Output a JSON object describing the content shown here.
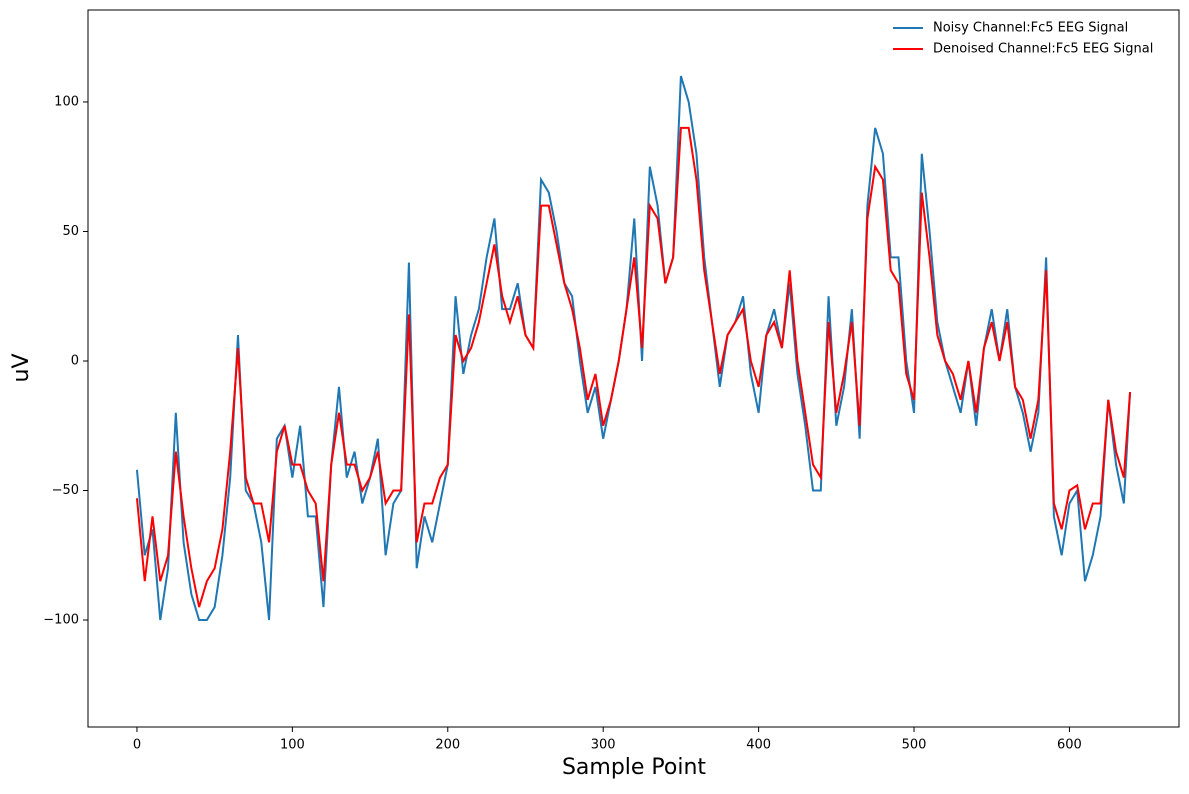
{
  "chart_data": {
    "type": "line",
    "x_label": "Sample Point",
    "y_label": "uV",
    "x": [
      0,
      5,
      10,
      15,
      20,
      25,
      30,
      35,
      40,
      45,
      50,
      55,
      60,
      65,
      70,
      75,
      80,
      85,
      90,
      95,
      100,
      105,
      110,
      115,
      120,
      125,
      130,
      135,
      140,
      145,
      150,
      155,
      160,
      165,
      170,
      175,
      180,
      185,
      190,
      195,
      200,
      205,
      210,
      215,
      220,
      225,
      230,
      235,
      240,
      245,
      250,
      255,
      260,
      265,
      270,
      275,
      280,
      285,
      290,
      295,
      300,
      305,
      310,
      315,
      320,
      325,
      330,
      335,
      340,
      345,
      350,
      355,
      360,
      365,
      370,
      375,
      380,
      385,
      390,
      395,
      400,
      405,
      410,
      415,
      420,
      425,
      430,
      435,
      440,
      445,
      450,
      455,
      460,
      465,
      470,
      475,
      480,
      485,
      490,
      495,
      500,
      505,
      510,
      515,
      520,
      525,
      530,
      535,
      540,
      545,
      550,
      555,
      560,
      565,
      570,
      575,
      580,
      585,
      590,
      595,
      600,
      605,
      610,
      615,
      620,
      625,
      630,
      635,
      639
    ],
    "series": [
      {
        "name": "Noisy Channel:Fc5 EEG Signal",
        "color": "#1f77b4",
        "values": [
          -42,
          -75,
          -65,
          -100,
          -80,
          -20,
          -70,
          -90,
          -100,
          -100,
          -95,
          -75,
          -45,
          10,
          -50,
          -55,
          -70,
          -100,
          -30,
          -25,
          -45,
          -25,
          -60,
          -60,
          -95,
          -40,
          -10,
          -45,
          -35,
          -55,
          -45,
          -30,
          -75,
          -55,
          -50,
          38,
          -80,
          -60,
          -70,
          -55,
          -40,
          25,
          -5,
          10,
          20,
          40,
          55,
          20,
          20,
          30,
          10,
          5,
          70,
          65,
          50,
          30,
          25,
          0,
          -20,
          -10,
          -30,
          -15,
          0,
          20,
          55,
          0,
          75,
          60,
          30,
          40,
          110,
          100,
          80,
          40,
          15,
          -10,
          10,
          15,
          25,
          -5,
          -20,
          10,
          20,
          5,
          30,
          -5,
          -25,
          -50,
          -50,
          25,
          -25,
          -10,
          20,
          -30,
          60,
          90,
          80,
          40,
          40,
          0,
          -20,
          80,
          50,
          15,
          0,
          -10,
          -20,
          0,
          -25,
          5,
          20,
          0,
          20,
          -10,
          -20,
          -35,
          -20,
          40,
          -60,
          -75,
          -55,
          -50,
          -85,
          -75,
          -60,
          -15,
          -40,
          -55,
          -12
        ]
      },
      {
        "name": "Denoised Channel:Fc5 EEG Signal",
        "color": "#ff0000",
        "values": [
          -53,
          -85,
          -60,
          -85,
          -75,
          -35,
          -60,
          -80,
          -95,
          -85,
          -80,
          -65,
          -35,
          5,
          -45,
          -55,
          -55,
          -70,
          -35,
          -25,
          -40,
          -40,
          -50,
          -55,
          -85,
          -40,
          -20,
          -40,
          -40,
          -50,
          -45,
          -35,
          -55,
          -50,
          -50,
          18,
          -70,
          -55,
          -55,
          -45,
          -40,
          10,
          0,
          5,
          15,
          30,
          45,
          25,
          15,
          25,
          10,
          5,
          60,
          60,
          45,
          30,
          20,
          5,
          -15,
          -5,
          -25,
          -15,
          0,
          20,
          40,
          5,
          60,
          55,
          30,
          40,
          90,
          90,
          70,
          35,
          15,
          -5,
          10,
          15,
          20,
          0,
          -10,
          10,
          15,
          5,
          35,
          0,
          -20,
          -40,
          -45,
          15,
          -20,
          -5,
          15,
          -25,
          55,
          75,
          70,
          35,
          30,
          -5,
          -15,
          65,
          40,
          10,
          0,
          -5,
          -15,
          0,
          -20,
          5,
          15,
          0,
          15,
          -10,
          -15,
          -30,
          -15,
          35,
          -55,
          -65,
          -50,
          -48,
          -65,
          -55,
          -55,
          -15,
          -35,
          -45,
          -12
        ]
      }
    ],
    "xlim": [
      -31.5,
      670.5
    ],
    "ylim": [
      -141.3,
      135.5
    ],
    "xticks": [
      0,
      100,
      200,
      300,
      400,
      500,
      600
    ],
    "yticks": [
      {
        "value": -100,
        "label": "−100"
      },
      {
        "value": -50,
        "label": "−50"
      },
      0,
      50,
      100
    ],
    "legend": "upper right"
  }
}
